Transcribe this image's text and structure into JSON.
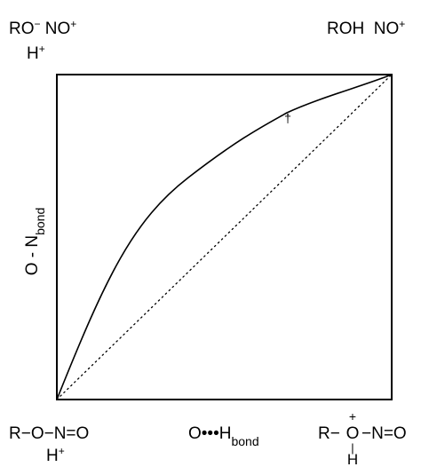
{
  "diagram": {
    "corners": {
      "top_left_line1": {
        "base": "RO",
        "sup1": "−",
        "mid": " NO",
        "sup2": "+"
      },
      "top_left_line2": {
        "base": "H",
        "sup": "+"
      },
      "top_right": {
        "base": "ROH  NO",
        "sup": "+"
      },
      "bottom_left_line1": "R−O−N=O",
      "bottom_left_line2": {
        "base": "H",
        "sup": "+"
      },
      "bottom_right": {
        "r": "R−",
        "o": "O",
        "tail": "−N=O",
        "charge": "+",
        "bond": "|",
        "h": "H"
      }
    },
    "axes": {
      "y_label": {
        "base": "O - N",
        "sub": "bond"
      },
      "x_label": {
        "base": "O•••H",
        "sub": "bond"
      }
    },
    "markers": {
      "dagger": "†"
    },
    "styles": {
      "stroke_color": "#000000",
      "background": "#ffffff"
    }
  }
}
